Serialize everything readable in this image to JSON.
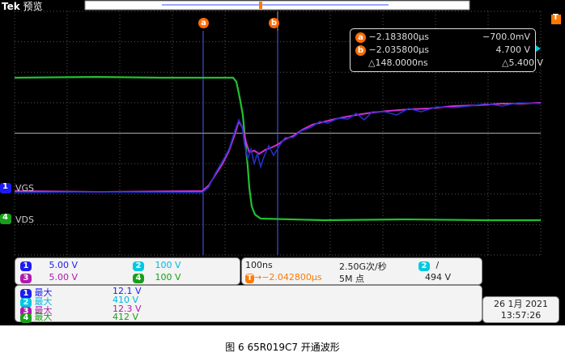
{
  "header": {
    "brand": "Tek",
    "mode": "预览"
  },
  "cursors": {
    "a_label": "a",
    "b_label": "b",
    "readout": {
      "a_time": "−2.183800µs",
      "a_value": "−700.0mV",
      "b_time": "−2.035800µs",
      "b_value": "4.700 V",
      "delta_time": "△148.0000ns",
      "delta_value": "△5.400 V"
    }
  },
  "trigger_marker": "T",
  "channels": [
    {
      "number": "1",
      "label": "VGS"
    },
    {
      "number": "4",
      "label": "VDS"
    }
  ],
  "scales": [
    {
      "number": "1",
      "value": "5.00 V"
    },
    {
      "number": "2",
      "value": "100 V"
    },
    {
      "number": "3",
      "value": "5.00 V"
    },
    {
      "number": "4",
      "value": "100 V"
    }
  ],
  "timebase": {
    "horizontal": "100ns",
    "rate": "2.50G次/秒",
    "position": "−2.042800µs",
    "record": "5M 点",
    "trigger_channel": "2",
    "trigger_slope": "/",
    "trigger_level": "494 V"
  },
  "measurements": [
    {
      "number": "1",
      "label": "最大",
      "value": "12.1 V"
    },
    {
      "number": "2",
      "label": "最大",
      "value": "410 V"
    },
    {
      "number": "3",
      "label": "最大",
      "value": "12.3 V"
    },
    {
      "number": "4",
      "label": "最大",
      "value": "412 V"
    }
  ],
  "datetime": {
    "date": "26 1月 2021",
    "time": "13:57:26"
  },
  "caption": "图 6  65R019C7 开通波形"
}
